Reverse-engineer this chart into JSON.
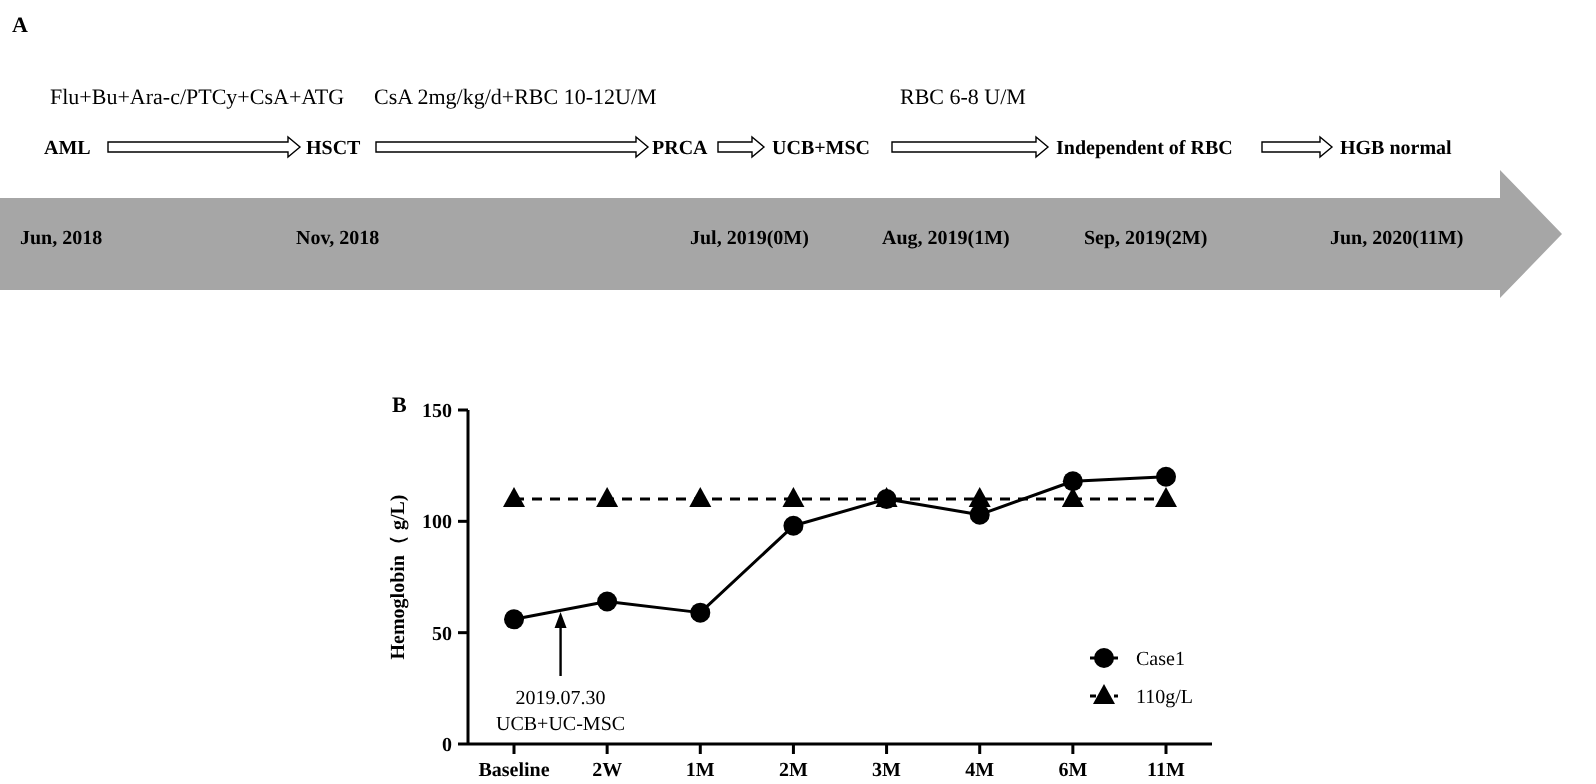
{
  "chart_data": [
    {
      "type": "other",
      "title": "A",
      "annotations": [
        "Flu+Bu+Ara-c/PTCy+CsA+ATG",
        "CsA 2mg/kg/d+RBC 10-12U/M",
        "RBC 6-8 U/M",
        "AML",
        "HSCT",
        "PRCA",
        "UCB+MSC",
        "Independent of RBC",
        "HGB normal",
        "Jun, 2018",
        "Nov, 2018",
        "Jul, 2019(0M)",
        "Aug, 2019(1M)",
        "Sep, 2019(2M)",
        "Jun, 2020(11M)"
      ]
    },
    {
      "type": "line",
      "title": "B",
      "ylabel": "Hemoglobin（ g/L)",
      "categories": [
        "Baseline",
        "2W",
        "1M",
        "2M",
        "3M",
        "4M",
        "6M",
        "11M"
      ],
      "series": [
        {
          "name": "Case1",
          "color": "#000000",
          "values": [
            56,
            64,
            59,
            98,
            110,
            103,
            118,
            120
          ],
          "marker": "circle",
          "line_style": "solid"
        },
        {
          "name": "110g/L",
          "color": "#000000",
          "values": [
            110,
            110,
            110,
            110,
            110,
            110,
            110,
            110
          ],
          "marker": "triangle",
          "line_style": "dashed"
        }
      ],
      "ylim": [
        0,
        150
      ],
      "yticks": [
        0,
        50,
        100,
        150
      ],
      "grid": false,
      "legend": "bottom right",
      "annotations": [
        "2019.07.30\nUCB+UC-MSC"
      ]
    }
  ]
}
